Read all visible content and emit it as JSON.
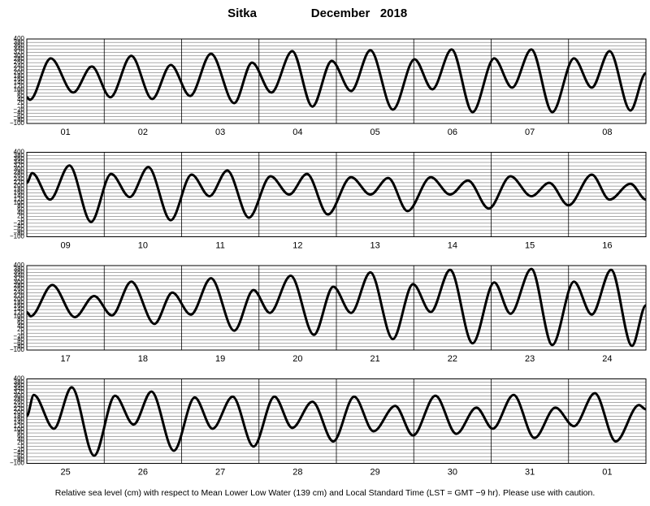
{
  "header": {
    "station": "Sitka",
    "month": "December   2018"
  },
  "footnote": "Relative sea level (cm) with respect to Mean Lower Low Water (139 cm) and Local Standard Time (LST = GMT −9 hr). Please use with caution.",
  "chart_data": [
    {
      "type": "line",
      "color": "#000000",
      "xlim": [
        0,
        8
      ],
      "ylim": [
        -100,
        400
      ],
      "yticks": [
        {
          "value": -100,
          "label": "−100"
        },
        {
          "value": -80,
          "label": "−80"
        },
        {
          "value": -60,
          "label": "−60"
        },
        {
          "value": -40,
          "label": "−40"
        },
        {
          "value": -20,
          "label": "−20"
        },
        0,
        20,
        40,
        60,
        80,
        100,
        120,
        140,
        160,
        180,
        200,
        220,
        240,
        260,
        280,
        300,
        320,
        340,
        360,
        380,
        400
      ],
      "xticks": [
        {
          "value": 0.5,
          "label": "01"
        },
        {
          "value": 1.5,
          "label": "02"
        },
        {
          "value": 2.5,
          "label": "03"
        },
        {
          "value": 3.5,
          "label": "04"
        },
        {
          "value": 4.5,
          "label": "05"
        },
        {
          "value": 5.5,
          "label": "06"
        },
        {
          "value": 6.5,
          "label": "07"
        },
        {
          "value": 7.5,
          "label": "08"
        }
      ],
      "x": [
        0,
        0.04,
        0.31,
        0.6,
        0.84,
        1.08,
        1.35,
        1.62,
        1.86,
        2.11,
        2.38,
        2.68,
        2.91,
        3.16,
        3.43,
        3.69,
        3.94,
        4.19,
        4.44,
        4.73,
        5.01,
        5.24,
        5.49,
        5.76,
        6.04,
        6.27,
        6.52,
        6.79,
        7.07,
        7.3,
        7.53,
        7.8,
        8
      ],
      "values": [
        55,
        40,
        285,
        83,
        237,
        55,
        300,
        45,
        246,
        63,
        313,
        20,
        260,
        83,
        328,
        0,
        270,
        92,
        333,
        -18,
        280,
        102,
        338,
        -33,
        285,
        112,
        338,
        -33,
        285,
        112,
        328,
        -23,
        198
      ]
    },
    {
      "type": "line",
      "color": "#000000",
      "xlim": [
        0,
        8
      ],
      "ylim": [
        -100,
        400
      ],
      "yticks": [
        {
          "value": -100,
          "label": "−100"
        },
        {
          "value": -80,
          "label": "−80"
        },
        {
          "value": -60,
          "label": "−60"
        },
        {
          "value": -40,
          "label": "−40"
        },
        {
          "value": -20,
          "label": "−20"
        },
        0,
        20,
        40,
        60,
        80,
        100,
        120,
        140,
        160,
        180,
        200,
        220,
        240,
        260,
        280,
        300,
        320,
        340,
        360,
        380,
        400
      ],
      "xticks": [
        {
          "value": 0.5,
          "label": "09"
        },
        {
          "value": 1.5,
          "label": "10"
        },
        {
          "value": 2.5,
          "label": "11"
        },
        {
          "value": 3.5,
          "label": "12"
        },
        {
          "value": 4.5,
          "label": "13"
        },
        {
          "value": 5.5,
          "label": "14"
        },
        {
          "value": 6.5,
          "label": "15"
        },
        {
          "value": 7.5,
          "label": "16"
        }
      ],
      "x": [
        0,
        0.07,
        0.3,
        0.55,
        0.83,
        1.09,
        1.33,
        1.57,
        1.86,
        2.13,
        2.36,
        2.59,
        2.87,
        3.15,
        3.39,
        3.62,
        3.89,
        4.19,
        4.44,
        4.67,
        4.92,
        5.22,
        5.47,
        5.7,
        5.97,
        6.25,
        6.52,
        6.75,
        7.0,
        7.3,
        7.53,
        7.8,
        8
      ],
      "values": [
        219,
        277,
        120,
        322,
        -12,
        272,
        135,
        312,
        -2,
        268,
        140,
        292,
        13,
        258,
        150,
        272,
        32,
        253,
        150,
        248,
        52,
        253,
        150,
        233,
        67,
        258,
        140,
        219,
        86,
        268,
        120,
        214,
        120
      ]
    },
    {
      "type": "line",
      "color": "#000000",
      "xlim": [
        0,
        8
      ],
      "ylim": [
        -100,
        400
      ],
      "yticks": [
        {
          "value": -100,
          "label": "−100"
        },
        {
          "value": -80,
          "label": "−80"
        },
        {
          "value": -60,
          "label": "−60"
        },
        {
          "value": -40,
          "label": "−40"
        },
        {
          "value": -20,
          "label": "−20"
        },
        0,
        20,
        40,
        60,
        80,
        100,
        120,
        140,
        160,
        180,
        200,
        220,
        240,
        260,
        280,
        300,
        320,
        340,
        360,
        380,
        400
      ],
      "xticks": [
        {
          "value": 0.5,
          "label": "17"
        },
        {
          "value": 1.5,
          "label": "18"
        },
        {
          "value": 2.5,
          "label": "19"
        },
        {
          "value": 3.5,
          "label": "20"
        },
        {
          "value": 4.5,
          "label": "21"
        },
        {
          "value": 5.5,
          "label": "22"
        },
        {
          "value": 6.5,
          "label": "23"
        },
        {
          "value": 7.5,
          "label": "24"
        }
      ],
      "x": [
        0,
        0.05,
        0.33,
        0.62,
        0.87,
        1.1,
        1.35,
        1.65,
        1.88,
        2.12,
        2.38,
        2.68,
        2.93,
        3.14,
        3.41,
        3.71,
        3.96,
        4.19,
        4.44,
        4.73,
        4.99,
        5.22,
        5.47,
        5.76,
        6.04,
        6.25,
        6.52,
        6.79,
        7.07,
        7.3,
        7.55,
        7.82,
        8
      ],
      "values": [
        125,
        100,
        285,
        95,
        220,
        105,
        305,
        55,
        240,
        110,
        325,
        15,
        255,
        120,
        340,
        -10,
        275,
        120,
        360,
        -35,
        290,
        125,
        375,
        -60,
        300,
        115,
        380,
        -70,
        305,
        110,
        375,
        -75,
        165
      ]
    },
    {
      "type": "line",
      "color": "#000000",
      "xlim": [
        0,
        8
      ],
      "ylim": [
        -100,
        400
      ],
      "yticks": [
        {
          "value": -100,
          "label": "−100"
        },
        {
          "value": -80,
          "label": "−80"
        },
        {
          "value": -60,
          "label": "−60"
        },
        {
          "value": -40,
          "label": "−40"
        },
        {
          "value": -20,
          "label": "−20"
        },
        0,
        20,
        40,
        60,
        80,
        100,
        120,
        140,
        160,
        180,
        200,
        220,
        240,
        260,
        280,
        300,
        320,
        340,
        360,
        380,
        400
      ],
      "xticks": [
        {
          "value": 0.5,
          "label": "25"
        },
        {
          "value": 1.5,
          "label": "26"
        },
        {
          "value": 2.5,
          "label": "27"
        },
        {
          "value": 3.5,
          "label": "28"
        },
        {
          "value": 4.5,
          "label": "29"
        },
        {
          "value": 5.5,
          "label": "30"
        },
        {
          "value": 6.5,
          "label": "31"
        },
        {
          "value": 7.5,
          "label": "01"
        }
      ],
      "x": [
        0,
        0.09,
        0.35,
        0.58,
        0.87,
        1.14,
        1.38,
        1.61,
        1.9,
        2.17,
        2.4,
        2.66,
        2.93,
        3.2,
        3.43,
        3.69,
        3.96,
        4.23,
        4.48,
        4.76,
        4.99,
        5.28,
        5.55,
        5.81,
        6.02,
        6.29,
        6.56,
        6.83,
        7.07,
        7.34,
        7.61,
        7.91,
        8
      ],
      "values": [
        180,
        305,
        105,
        350,
        -55,
        300,
        130,
        325,
        -25,
        290,
        105,
        295,
        0,
        295,
        110,
        265,
        30,
        295,
        90,
        240,
        65,
        300,
        75,
        230,
        105,
        305,
        50,
        230,
        120,
        315,
        30,
        245,
        220
      ]
    }
  ]
}
